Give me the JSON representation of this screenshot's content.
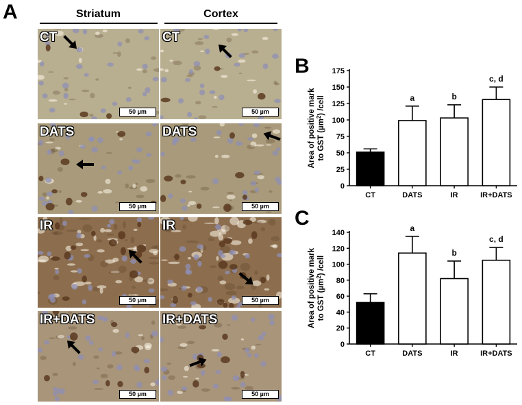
{
  "panel_a": {
    "letter": "A",
    "columns": [
      "Striatum",
      "Cortex"
    ],
    "rows": [
      "CT",
      "DATS",
      "IR",
      "IR+DATS"
    ],
    "scale_bar": "50 µm",
    "colors": {
      "ct_bg": "#b8ae90",
      "dats_bg": "#a89a7a",
      "ir_bg": "#8c6e4e",
      "irdats_bg": "#a8957a",
      "nucleus": "#8f8fb6",
      "stain": "#5a3a20"
    }
  },
  "chart_data": [
    {
      "panel": "B",
      "type": "bar",
      "categories": [
        "CT",
        "DATS",
        "IR",
        "IR+DATS"
      ],
      "values": [
        51,
        99,
        103,
        131
      ],
      "errors": [
        5,
        22,
        20,
        19
      ],
      "annotations": [
        "",
        "a",
        "b",
        "c, d"
      ],
      "bar_colors": [
        "#000000",
        "#ffffff",
        "#ffffff",
        "#ffffff"
      ],
      "ylabel_line1": "Area of positive mark",
      "ylabel_line2_pre": "to GST (",
      "ylabel_unit": "µm",
      "ylabel_sup": "2",
      "ylabel_line2_post": ") /cell",
      "ylim": [
        0,
        175
      ],
      "yticks": [
        0,
        25,
        50,
        75,
        100,
        125,
        150,
        175
      ]
    },
    {
      "panel": "C",
      "type": "bar",
      "categories": [
        "CT",
        "DATS",
        "IR",
        "IR+DATS"
      ],
      "values": [
        52,
        114,
        82,
        105
      ],
      "errors": [
        11,
        21,
        22,
        16
      ],
      "annotations": [
        "",
        "a",
        "b",
        "c, d"
      ],
      "bar_colors": [
        "#000000",
        "#ffffff",
        "#ffffff",
        "#ffffff"
      ],
      "ylabel_line1": "Area of positive mark",
      "ylabel_line2_pre": "to GST (",
      "ylabel_unit": "µm",
      "ylabel_sup": "2",
      "ylabel_line2_post": ") /cell",
      "ylim": [
        0,
        140
      ],
      "yticks": [
        0,
        20,
        40,
        60,
        80,
        100,
        120,
        140
      ]
    }
  ]
}
